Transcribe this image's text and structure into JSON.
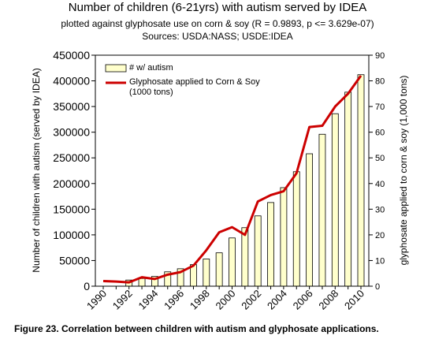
{
  "chart_data": {
    "type": "bar",
    "title": "Number of children (6-21yrs) with autism served by IDEA",
    "subtitle": "plotted against glyphosate use on corn & soy (R = 0.9893, p <= 3.629e-07)",
    "source": "Sources: USDA:NASS; USDE:IDEA",
    "y_label": "Number of children with autism (served by IDEA)",
    "y2_label": "glyphosate applied to corn & soy (1,000 tons)",
    "caption": "Figure 23. Correlation between children with autism and glyphosate applications.",
    "categories": [
      "1990",
      null,
      "1992",
      null,
      "1994",
      null,
      "1996",
      null,
      "1998",
      null,
      "2000",
      null,
      "2002",
      null,
      "2004",
      null,
      "2006",
      null,
      "2008",
      null,
      "2010"
    ],
    "series": [
      {
        "name": "# w/ autism",
        "type": "bar",
        "color": "#ffffcc",
        "values": [
          null,
          null,
          12000,
          15000,
          19000,
          28000,
          34000,
          42000,
          53000,
          65000,
          94000,
          114000,
          137000,
          163000,
          192000,
          223000,
          258000,
          296000,
          336000,
          378000,
          412000
        ]
      },
      {
        "name": "Glyphosate applied to Corn & Soy (1000 tons)",
        "type": "line",
        "axis": "y2",
        "color": "#cc0000",
        "values": [
          2,
          1.8,
          1.5,
          3.5,
          2.8,
          4.5,
          5.5,
          8,
          14,
          21,
          23,
          20,
          33,
          35.5,
          37,
          44,
          62,
          62.5,
          70,
          75,
          82
        ]
      }
    ],
    "ylim": [
      0,
      450000
    ],
    "yticks": [
      0,
      50000,
      100000,
      150000,
      200000,
      250000,
      300000,
      350000,
      400000,
      450000
    ],
    "y2lim": [
      0,
      90
    ],
    "y2ticks": [
      0,
      10,
      20,
      30,
      40,
      50,
      60,
      70,
      80,
      90
    ],
    "grid": false
  }
}
